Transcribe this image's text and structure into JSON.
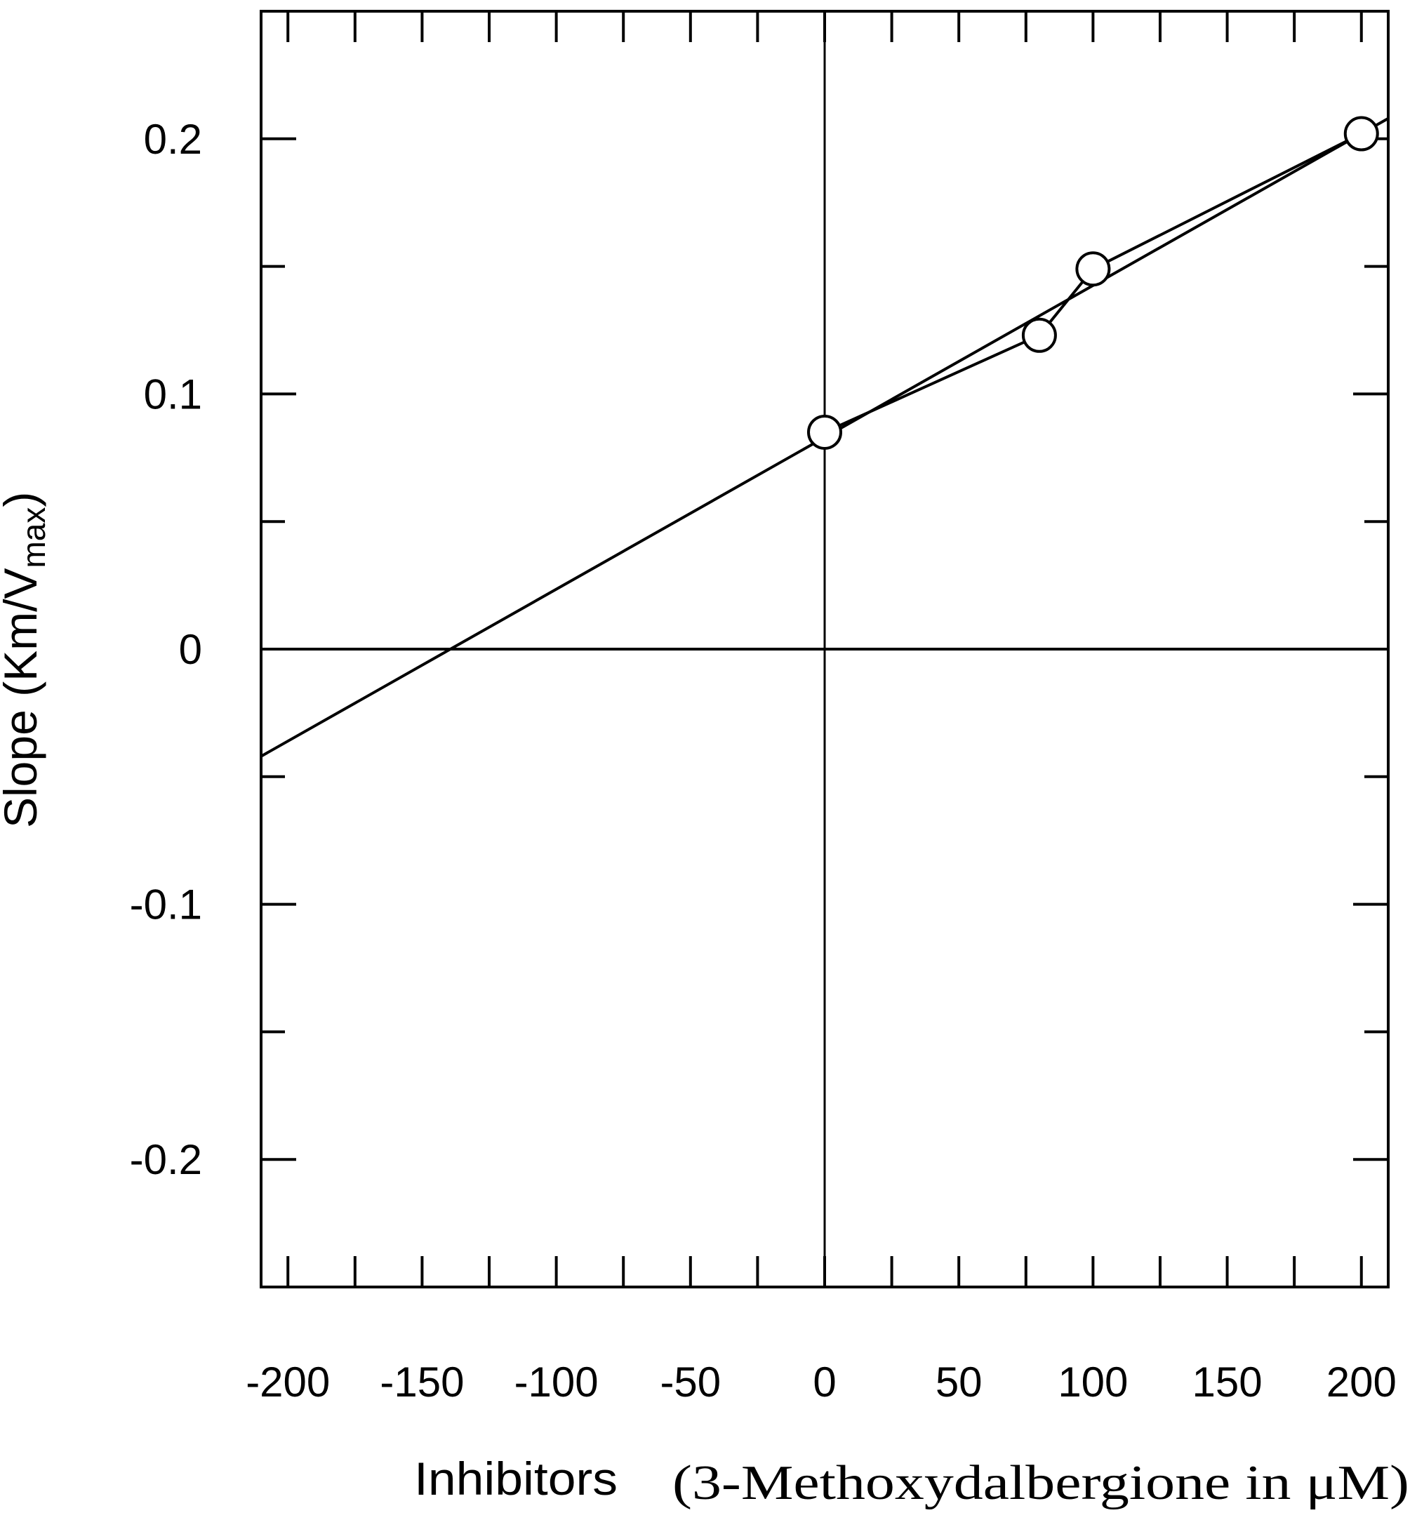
{
  "chart_data": {
    "type": "line",
    "xlabel": "Inhibitors",
    "xlabel_sub": "(3-Methoxydalbergione in μM)",
    "ylabel": {
      "main": "Slope (Km/V",
      "sub": "max",
      "close": ")"
    },
    "xlim": [
      -210,
      210
    ],
    "ylim": [
      -0.25,
      0.25
    ],
    "x_ticks": [
      -200,
      -150,
      -100,
      -50,
      0,
      50,
      100,
      150,
      200
    ],
    "x_tick_labels": [
      "-200",
      "-150",
      "-100",
      "-50",
      "0",
      "50",
      "100",
      "150",
      "200"
    ],
    "y_ticks": [
      -0.2,
      -0.1,
      0,
      0.1,
      0.2
    ],
    "y_tick_labels": [
      "-0.2",
      "-0.1",
      "0",
      "0.1",
      "0.2"
    ],
    "y_minor_ticks": [
      -0.25,
      -0.15,
      -0.05,
      0.05,
      0.15,
      0.25
    ],
    "grid": false,
    "series": [
      {
        "style": "line-with-open-circles",
        "x": [
          0,
          80,
          100,
          200
        ],
        "y": [
          0.085,
          0.123,
          0.149,
          0.202
        ]
      }
    ],
    "fit_line": {
      "x": [
        -210,
        210
      ],
      "y": [
        -0.042,
        0.208
      ]
    }
  }
}
